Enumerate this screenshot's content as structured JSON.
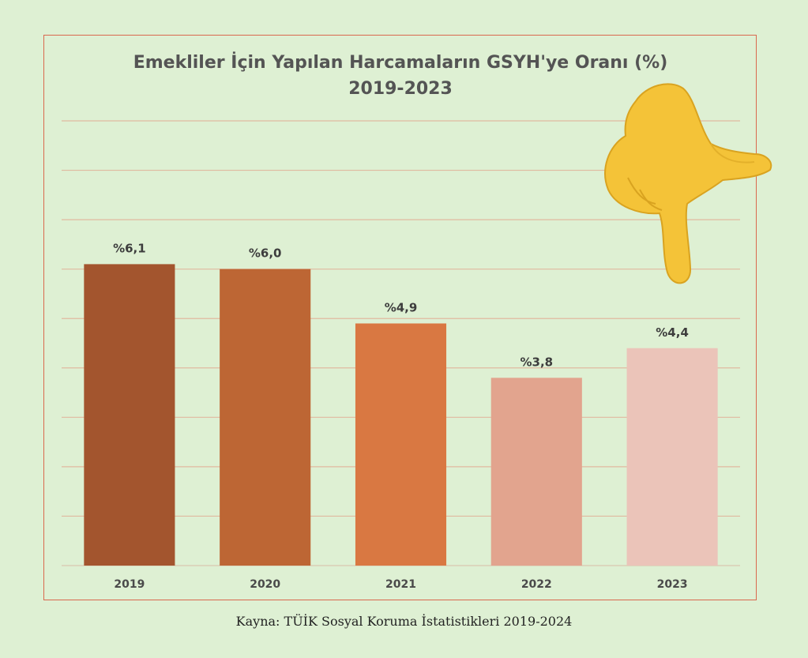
{
  "chart_data": {
    "type": "bar",
    "title": "Emekliler İçin Yapılan Harcamaların GSYH'ye Oranı (%)",
    "subtitle": "2019-2023",
    "categories": [
      "2019",
      "2020",
      "2021",
      "2022",
      "2023"
    ],
    "values": [
      6.1,
      6.0,
      4.9,
      3.8,
      4.4
    ],
    "data_labels": [
      "%6,1",
      "%6,0",
      "%4,9",
      "%3,8",
      "%4,4"
    ],
    "bar_colors": [
      "#a3552e",
      "#bd6634",
      "#d97842",
      "#e2a48e",
      "#ebc4b9"
    ],
    "ylim": [
      0,
      9
    ],
    "grid": true,
    "legend": "none"
  },
  "source": "Kayna: TÜİK Sosyal Koruma İstatistikleri 2019-2024",
  "decoration": {
    "icon": "pointing-down-hand-icon"
  }
}
